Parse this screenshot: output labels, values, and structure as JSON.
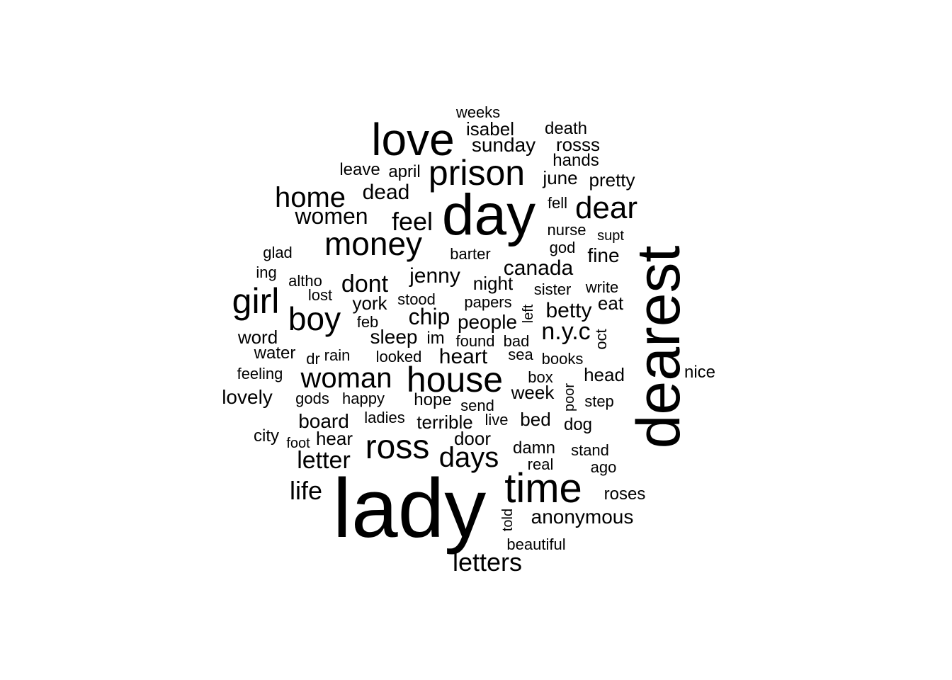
{
  "text_color": "#000000",
  "background_color": "#ffffff",
  "words": [
    {
      "text": "lady",
      "rotated": false
    },
    {
      "text": "day",
      "rotated": false
    },
    {
      "text": "dearest",
      "rotated": true
    },
    {
      "text": "love",
      "rotated": false
    },
    {
      "text": "prison",
      "rotated": false
    },
    {
      "text": "time",
      "rotated": false
    },
    {
      "text": "house",
      "rotated": false
    },
    {
      "text": "ross",
      "rotated": false
    },
    {
      "text": "money",
      "rotated": false
    },
    {
      "text": "girl",
      "rotated": false
    },
    {
      "text": "boy",
      "rotated": false
    },
    {
      "text": "woman",
      "rotated": false
    },
    {
      "text": "dear",
      "rotated": false
    },
    {
      "text": "home",
      "rotated": false
    },
    {
      "text": "days",
      "rotated": false
    },
    {
      "text": "letters",
      "rotated": false
    },
    {
      "text": "dont",
      "rotated": false
    },
    {
      "text": "feel",
      "rotated": false
    },
    {
      "text": "life",
      "rotated": false
    },
    {
      "text": "letter",
      "rotated": false
    },
    {
      "text": "dead",
      "rotated": false
    },
    {
      "text": "women",
      "rotated": false
    },
    {
      "text": "jenny",
      "rotated": false
    },
    {
      "text": "canada",
      "rotated": false
    },
    {
      "text": "n.y.c",
      "rotated": false
    },
    {
      "text": "chip",
      "rotated": false
    },
    {
      "text": "heart",
      "rotated": false
    },
    {
      "text": "sleep",
      "rotated": false
    },
    {
      "text": "people",
      "rotated": false
    },
    {
      "text": "betty",
      "rotated": false
    },
    {
      "text": "sunday",
      "rotated": false
    },
    {
      "text": "rosss",
      "rotated": false
    },
    {
      "text": "isabel",
      "rotated": false
    },
    {
      "text": "death",
      "rotated": false
    },
    {
      "text": "weeks",
      "rotated": false
    },
    {
      "text": "hands",
      "rotated": false
    },
    {
      "text": "june",
      "rotated": false
    },
    {
      "text": "pretty",
      "rotated": false
    },
    {
      "text": "april",
      "rotated": false
    },
    {
      "text": "leave",
      "rotated": false
    },
    {
      "text": "fell",
      "rotated": false
    },
    {
      "text": "nurse",
      "rotated": false
    },
    {
      "text": "supt",
      "rotated": false
    },
    {
      "text": "god",
      "rotated": false
    },
    {
      "text": "fine",
      "rotated": false
    },
    {
      "text": "barter",
      "rotated": false
    },
    {
      "text": "glad",
      "rotated": false
    },
    {
      "text": "ing",
      "rotated": false
    },
    {
      "text": "altho",
      "rotated": false
    },
    {
      "text": "lost",
      "rotated": false
    },
    {
      "text": "night",
      "rotated": false
    },
    {
      "text": "sister",
      "rotated": false
    },
    {
      "text": "write",
      "rotated": false
    },
    {
      "text": "eat",
      "rotated": false
    },
    {
      "text": "york",
      "rotated": false
    },
    {
      "text": "stood",
      "rotated": false
    },
    {
      "text": "papers",
      "rotated": false
    },
    {
      "text": "left",
      "rotated": true
    },
    {
      "text": "feb",
      "rotated": false
    },
    {
      "text": "word",
      "rotated": false
    },
    {
      "text": "im",
      "rotated": false
    },
    {
      "text": "found",
      "rotated": false
    },
    {
      "text": "bad",
      "rotated": false
    },
    {
      "text": "oct",
      "rotated": true
    },
    {
      "text": "water",
      "rotated": false
    },
    {
      "text": "dr",
      "rotated": false
    },
    {
      "text": "rain",
      "rotated": false
    },
    {
      "text": "looked",
      "rotated": false
    },
    {
      "text": "sea",
      "rotated": false
    },
    {
      "text": "books",
      "rotated": false
    },
    {
      "text": "feeling",
      "rotated": false
    },
    {
      "text": "box",
      "rotated": false
    },
    {
      "text": "head",
      "rotated": false
    },
    {
      "text": "nice",
      "rotated": false
    },
    {
      "text": "lovely",
      "rotated": false
    },
    {
      "text": "gods",
      "rotated": false
    },
    {
      "text": "happy",
      "rotated": false
    },
    {
      "text": "hope",
      "rotated": false
    },
    {
      "text": "send",
      "rotated": false
    },
    {
      "text": "week",
      "rotated": false
    },
    {
      "text": "poor",
      "rotated": true
    },
    {
      "text": "step",
      "rotated": false
    },
    {
      "text": "board",
      "rotated": false
    },
    {
      "text": "ladies",
      "rotated": false
    },
    {
      "text": "terrible",
      "rotated": false
    },
    {
      "text": "live",
      "rotated": false
    },
    {
      "text": "bed",
      "rotated": false
    },
    {
      "text": "dog",
      "rotated": false
    },
    {
      "text": "city",
      "rotated": false
    },
    {
      "text": "foot",
      "rotated": false
    },
    {
      "text": "hear",
      "rotated": false
    },
    {
      "text": "door",
      "rotated": false
    },
    {
      "text": "damn",
      "rotated": false
    },
    {
      "text": "stand",
      "rotated": false
    },
    {
      "text": "real",
      "rotated": false
    },
    {
      "text": "ago",
      "rotated": false
    },
    {
      "text": "roses",
      "rotated": false
    },
    {
      "text": "anonymous",
      "rotated": false
    },
    {
      "text": "told",
      "rotated": true
    },
    {
      "text": "beautiful",
      "rotated": false
    }
  ]
}
